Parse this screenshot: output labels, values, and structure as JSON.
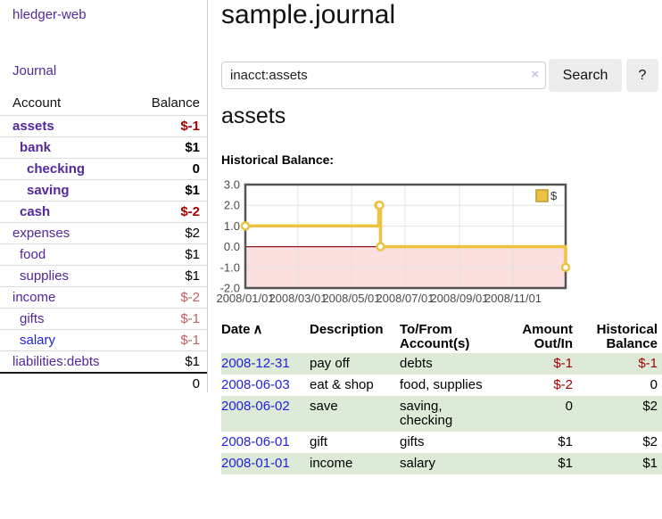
{
  "sidebar": {
    "brand": "hledger-web",
    "nav": {
      "journal": "Journal"
    },
    "account_table": {
      "account_header": "Account",
      "balance_header": "Balance",
      "accounts": [
        {
          "name": "assets",
          "depth": 1,
          "bold": true,
          "blue": false,
          "balance": "$-1",
          "balance_color": "neg"
        },
        {
          "name": "bank",
          "depth": 2,
          "bold": true,
          "blue": false,
          "balance": "$1",
          "balance_color": ""
        },
        {
          "name": "checking",
          "depth": 3,
          "bold": true,
          "blue": false,
          "balance": "0",
          "balance_color": ""
        },
        {
          "name": "saving",
          "depth": 3,
          "bold": true,
          "blue": false,
          "balance": "$1",
          "balance_color": ""
        },
        {
          "name": "cash",
          "depth": 2,
          "bold": true,
          "blue": false,
          "balance": "$-2",
          "balance_color": "neg"
        },
        {
          "name": "expenses",
          "depth": 1,
          "bold": false,
          "blue": false,
          "balance": "$2",
          "balance_color": ""
        },
        {
          "name": "food",
          "depth": 2,
          "bold": false,
          "blue": false,
          "balance": "$1",
          "balance_color": ""
        },
        {
          "name": "supplies",
          "depth": 2,
          "bold": false,
          "blue": false,
          "balance": "$1",
          "balance_color": ""
        },
        {
          "name": "income",
          "depth": 1,
          "bold": false,
          "blue": false,
          "balance": "$-2",
          "balance_color": "negmuted"
        },
        {
          "name": "gifts",
          "depth": 2,
          "bold": false,
          "blue": false,
          "balance": "$-1",
          "balance_color": "negmuted"
        },
        {
          "name": "salary",
          "depth": 2,
          "bold": false,
          "blue": true,
          "balance": "$-1",
          "balance_color": "negmuted"
        },
        {
          "name": "liabilities:debts",
          "depth": 1,
          "bold": false,
          "blue": false,
          "balance": "$1",
          "balance_color": ""
        }
      ],
      "total": "0"
    }
  },
  "header": {
    "title": "sample.journal"
  },
  "search": {
    "value": "inacct:assets",
    "clear_icon": "×",
    "button_label": "Search",
    "help_label": "?"
  },
  "section": {
    "heading": "assets",
    "chart_label": "Historical Balance:"
  },
  "chart_data": {
    "type": "line",
    "step": true,
    "title": "Historical Balance",
    "series": [
      {
        "name": "$",
        "color": "#edc240",
        "points": [
          [
            "2008-01-01",
            1
          ],
          [
            "2008-06-01",
            2
          ],
          [
            "2008-06-02",
            2
          ],
          [
            "2008-06-03",
            0
          ],
          [
            "2008-12-31",
            -1
          ]
        ]
      }
    ],
    "x_range": [
      "2008-01-01",
      "2008-12-31"
    ],
    "ylim": [
      -2.0,
      3.0
    ],
    "y_ticks": [
      3.0,
      2.0,
      1.0,
      0.0,
      -1.0,
      -2.0
    ],
    "x_ticks": [
      {
        "label": "2008/01/01",
        "date": "2008-01-01"
      },
      {
        "label": "2008/03/01",
        "date": "2008-03-01"
      },
      {
        "label": "2008/05/01",
        "date": "2008-05-01"
      },
      {
        "label": "2008/07/01",
        "date": "2008-07-01"
      },
      {
        "label": "2008/09/01",
        "date": "2008-09-01"
      },
      {
        "label": "2008/11/01",
        "date": "2008-11-01"
      }
    ],
    "x_grid": [
      "2008-03-01",
      "2008-05-01",
      "2008-07-01",
      "2008-09-01",
      "2008-11-01"
    ],
    "grid": true,
    "negative_fill": "#fbdede",
    "zero_line_color": "#8b1a1a",
    "legend": {
      "label": "$",
      "color": "#edc240",
      "position": "top-right"
    }
  },
  "register": {
    "headers": {
      "date": "Date",
      "sort_icon": "∧",
      "description": "Description",
      "accounts": "To/From Account(s)",
      "amount": "Amount Out/In",
      "balance": "Historical Balance"
    },
    "rows": [
      {
        "date": "2008-12-31",
        "description": "pay off",
        "accounts": "debts",
        "amount": "$-1",
        "amount_neg": true,
        "balance": "$-1",
        "balance_neg": true,
        "green": true
      },
      {
        "date": "2008-06-03",
        "description": "eat & shop",
        "accounts": "food, supplies",
        "amount": "$-2",
        "amount_neg": true,
        "balance": "0",
        "balance_neg": false,
        "green": false
      },
      {
        "date": "2008-06-02",
        "description": "save",
        "accounts": "saving, checking",
        "amount": "0",
        "amount_neg": false,
        "balance": "$2",
        "balance_neg": false,
        "green": true
      },
      {
        "date": "2008-06-01",
        "description": "gift",
        "accounts": "gifts",
        "amount": "$1",
        "amount_neg": false,
        "balance": "$2",
        "balance_neg": false,
        "green": false
      },
      {
        "date": "2008-01-01",
        "description": "income",
        "accounts": "salary",
        "amount": "$1",
        "amount_neg": false,
        "balance": "$1",
        "balance_neg": false,
        "green": true
      }
    ]
  },
  "colors": {
    "link_purple": "#53279d",
    "link_blue": "#2222dd",
    "negative_red": "#a40000",
    "negative_muted": "#bb6060",
    "row_green": "#deead8",
    "series_gold": "#edc240",
    "plot_border": "#545454",
    "sidebar_divider": "#cccccc"
  }
}
